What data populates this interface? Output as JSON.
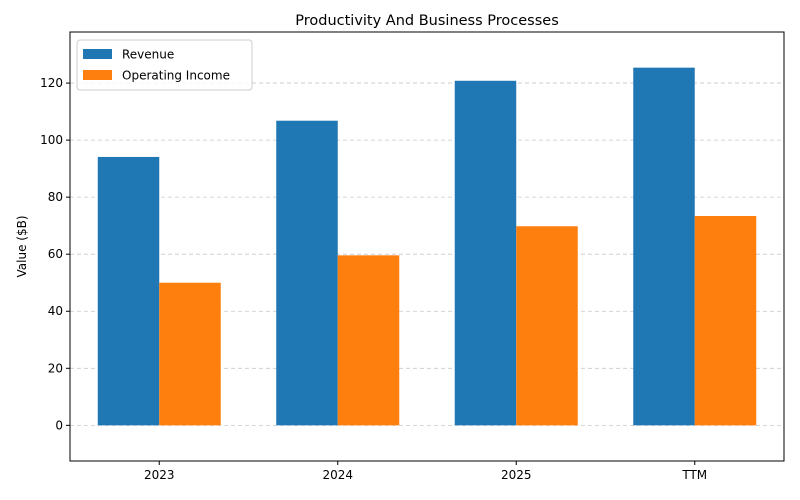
{
  "chart_data": {
    "type": "bar",
    "title": "Productivity And Business Processes",
    "xlabel": "",
    "ylabel": "Value ($B)",
    "categories": [
      "2023",
      "2024",
      "2025",
      "TTM"
    ],
    "series": [
      {
        "name": "Revenue",
        "color": "#1f77b4",
        "values": [
          94.1,
          106.8,
          120.8,
          125.4
        ]
      },
      {
        "name": "Operating Income",
        "color": "#ff7f0e",
        "values": [
          50.0,
          59.6,
          69.8,
          73.4
        ]
      }
    ],
    "ylim": [
      -12.5,
      137.9
    ],
    "yticks": [
      0,
      20,
      40,
      60,
      80,
      100,
      120
    ],
    "grid": "y-dashed",
    "legend_position": "top-left"
  }
}
